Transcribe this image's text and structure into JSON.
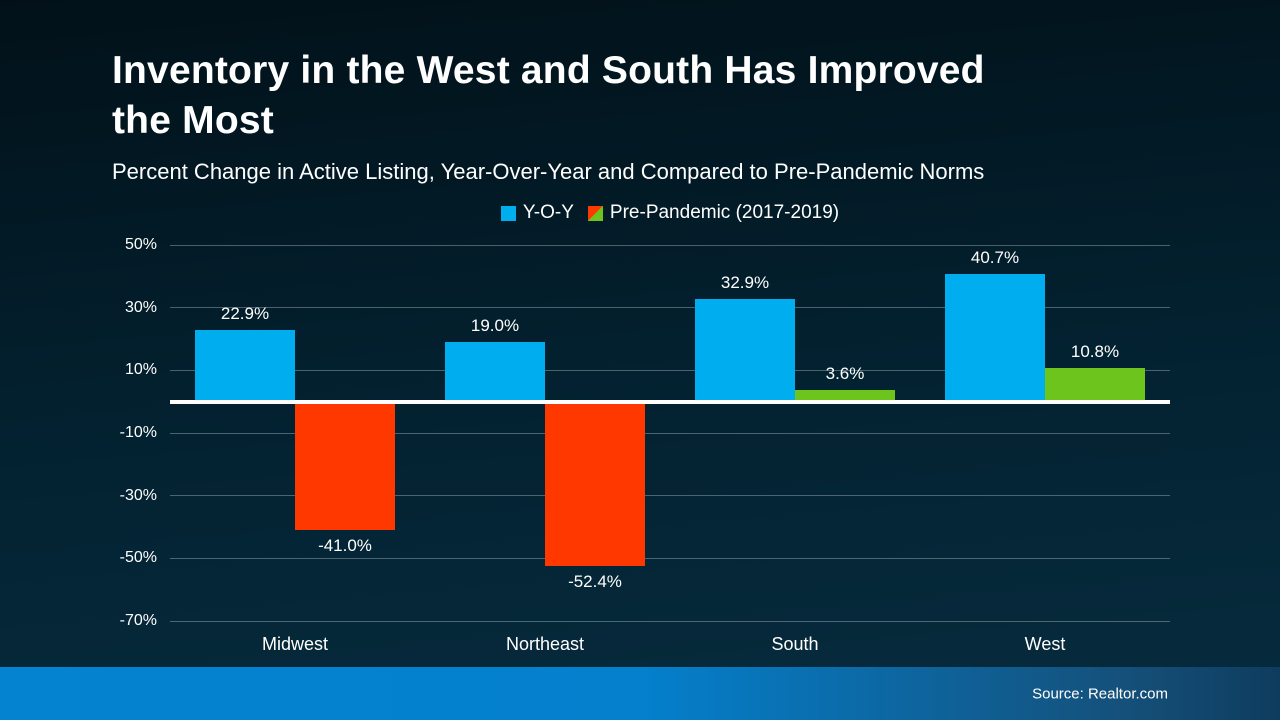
{
  "slide": {
    "title": "Inventory in the West and South Has Improved the Most",
    "title_line1": "Inventory in the West and South Has Improved",
    "title_line2": "the Most",
    "subtitle": "Percent Change in Active Listing, Year-Over-Year and Compared to Pre-Pandemic Norms",
    "source": "Source: Realtor.com"
  },
  "legend": {
    "items": [
      {
        "label": "Y-O-Y",
        "swatch": "solid",
        "color": "#00AEEF"
      },
      {
        "label": "Pre-Pandemic (2017-2019)",
        "swatch": "split-diagonal",
        "color_top_left": "#FF3800",
        "color_bottom_right": "#6CC41C"
      }
    ]
  },
  "colors": {
    "background_top": "#021119",
    "background_bottom": "#072C3F",
    "bar_blue": "#00AEEF",
    "bar_red": "#FF3800",
    "bar_green": "#6CC41C",
    "gridline": "rgba(165,180,190,0.45)",
    "zero_line": "#FFFFFF",
    "text": "#FFFFFF",
    "footer_left": "#0483D1",
    "footer_right": "#0E3C5E"
  },
  "chart_data": {
    "type": "bar",
    "title": "Inventory in the West and South Has Improved the Most",
    "subtitle": "Percent Change in Active Listing, Year-Over-Year and Compared to Pre-Pandemic Norms",
    "categories": [
      "Midwest",
      "Northeast",
      "South",
      "West"
    ],
    "series": [
      {
        "name": "Y-O-Y",
        "values": [
          22.9,
          19.0,
          32.9,
          40.7
        ],
        "labels": [
          "22.9%",
          "19.0%",
          "32.9%",
          "40.7%"
        ],
        "color": "#00AEEF"
      },
      {
        "name": "Pre-Pandemic (2017-2019)",
        "values": [
          -41.0,
          -52.4,
          3.6,
          10.8
        ],
        "labels": [
          "-41.0%",
          "-52.4%",
          "3.6%",
          "10.8%"
        ],
        "color_positive": "#6CC41C",
        "color_negative": "#FF3800"
      }
    ],
    "ylim": [
      -70,
      50
    ],
    "yticks": [
      {
        "value": 50,
        "label": "50%"
      },
      {
        "value": 30,
        "label": "30%"
      },
      {
        "value": 10,
        "label": "10%"
      },
      {
        "value": -10,
        "label": "-10%"
      },
      {
        "value": -30,
        "label": "-30%"
      },
      {
        "value": -50,
        "label": "-50%"
      },
      {
        "value": -70,
        "label": "-70%"
      }
    ],
    "grid": true,
    "legend_position": "top-center",
    "xlabel": "",
    "ylabel": "",
    "source": "Source: Realtor.com"
  }
}
